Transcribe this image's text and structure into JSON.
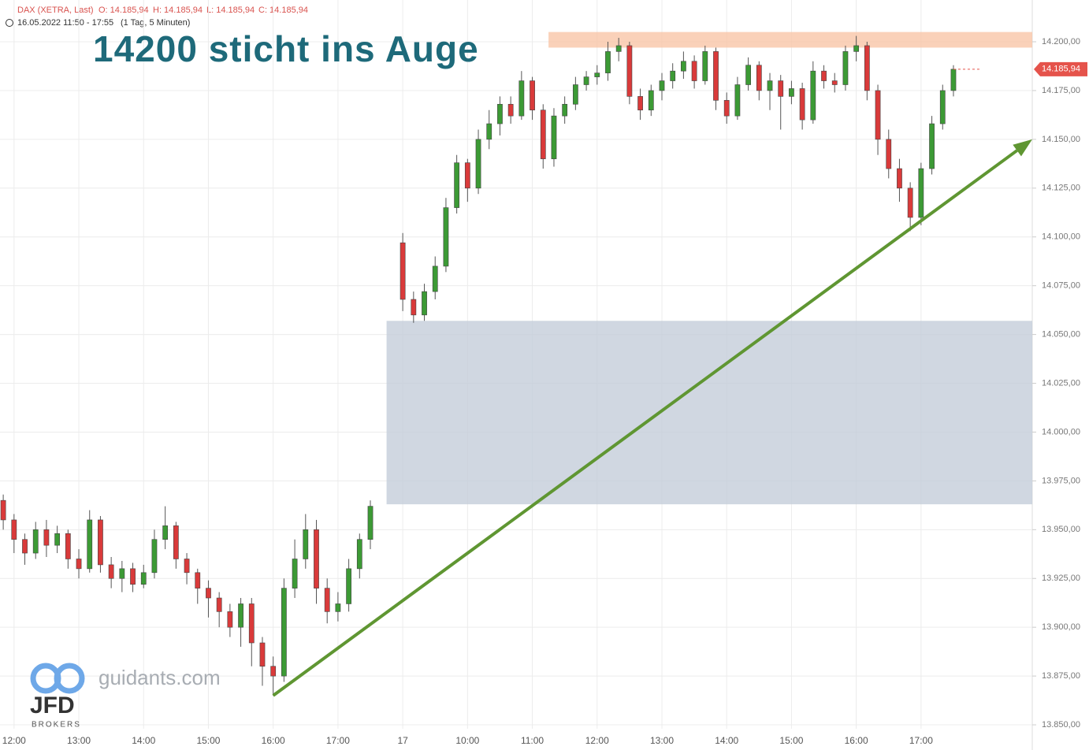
{
  "header": {
    "instrument": "DAX (XETRA, Last)",
    "open": "O: 14.185,94",
    "high": "H: 14.185,94",
    "low": "L: 14.185,94",
    "close": "C: 14.185,94",
    "range": "16.05.2022 11:50 - 17:55",
    "interval": "(1 Tag, 5 Minuten)"
  },
  "logo": {
    "site": "guidants.com",
    "brand": "JFD",
    "sub": "BROKERS"
  },
  "chart_data": {
    "type": "candlestick",
    "title": "14200 sticht ins Auge",
    "up_color": "#3c9a35",
    "down_color": "#d93a3a",
    "x": [
      0,
      1,
      2,
      3,
      4,
      5,
      6,
      7,
      8,
      9,
      10,
      11,
      12,
      13,
      14,
      15,
      16,
      17,
      18,
      19,
      20,
      21,
      22,
      23,
      24,
      25,
      26,
      27,
      28,
      29,
      30,
      31,
      32,
      33,
      34,
      37,
      38,
      39,
      40,
      41,
      42,
      43,
      44,
      45,
      46,
      47,
      48,
      49,
      50,
      51,
      52,
      53,
      54,
      55,
      56,
      57,
      58,
      59,
      60,
      61,
      62,
      63,
      64,
      65,
      66,
      67,
      68,
      69,
      70,
      71,
      72,
      73,
      74,
      75,
      76,
      77,
      78,
      79,
      80,
      81,
      82,
      83,
      84,
      85,
      86,
      87,
      88
    ],
    "open": [
      13965,
      13955,
      13945,
      13938,
      13950,
      13942,
      13948,
      13935,
      13930,
      13955,
      13932,
      13925,
      13930,
      13922,
      13928,
      13945,
      13952,
      13935,
      13928,
      13920,
      13915,
      13908,
      13900,
      13912,
      13892,
      13880,
      13875,
      13920,
      13935,
      13950,
      13920,
      13908,
      13912,
      13930,
      13945,
      14097,
      14068,
      14060,
      14072,
      14085,
      14115,
      14138,
      14125,
      14150,
      14158,
      14168,
      14162,
      14180,
      14165,
      14140,
      14162,
      14168,
      14178,
      14182,
      14184,
      14195,
      14198,
      14172,
      14165,
      14175,
      14180,
      14185,
      14190,
      14180,
      14195,
      14170,
      14162,
      14178,
      14188,
      14175,
      14180,
      14172,
      14176,
      14160,
      14185,
      14180,
      14178,
      14195,
      14198,
      14175,
      14150,
      14135,
      14125,
      14110,
      14135,
      14158,
      14175
    ],
    "high": [
      13968,
      13958,
      13948,
      13954,
      13955,
      13952,
      13950,
      13940,
      13960,
      13957,
      13936,
      13934,
      13933,
      13932,
      13950,
      13962,
      13954,
      13938,
      13930,
      13924,
      13918,
      13912,
      13915,
      13915,
      13895,
      13885,
      13925,
      13945,
      13958,
      13955,
      13925,
      13918,
      13935,
      13948,
      13965,
      14102,
      14072,
      14076,
      14090,
      14120,
      14142,
      14140,
      14155,
      14165,
      14172,
      14172,
      14185,
      14182,
      14168,
      14166,
      14172,
      14182,
      14185,
      14188,
      14200,
      14202,
      14200,
      14176,
      14178,
      14184,
      14189,
      14195,
      14193,
      14198,
      14197,
      14174,
      14182,
      14192,
      14190,
      14184,
      14183,
      14180,
      14179,
      14190,
      14188,
      14184,
      14198,
      14203,
      14200,
      14178,
      14155,
      14140,
      14128,
      14138,
      14162,
      14178,
      14188
    ],
    "low": [
      13950,
      13938,
      13932,
      13935,
      13936,
      13938,
      13930,
      13925,
      13928,
      13928,
      13920,
      13918,
      13918,
      13920,
      13925,
      13940,
      13930,
      13922,
      13912,
      13905,
      13900,
      13895,
      13890,
      13880,
      13870,
      13865,
      13872,
      13915,
      13930,
      13912,
      13902,
      13903,
      13908,
      13925,
      13940,
      14062,
      14056,
      14057,
      14068,
      14082,
      14112,
      14118,
      14122,
      14145,
      14152,
      14158,
      14160,
      14160,
      14135,
      14136,
      14158,
      14165,
      14175,
      14178,
      14180,
      14190,
      14168,
      14160,
      14162,
      14170,
      14176,
      14181,
      14176,
      14178,
      14165,
      14158,
      14160,
      14175,
      14170,
      14165,
      14155,
      14168,
      14155,
      14158,
      14176,
      14174,
      14175,
      14190,
      14170,
      14142,
      14130,
      14118,
      14103,
      14106,
      14132,
      14155,
      14172
    ],
    "close": [
      13955,
      13945,
      13938,
      13950,
      13942,
      13948,
      13935,
      13930,
      13955,
      13932,
      13925,
      13930,
      13922,
      13928,
      13945,
      13952,
      13935,
      13928,
      13920,
      13915,
      13908,
      13900,
      13912,
      13892,
      13880,
      13875,
      13920,
      13935,
      13950,
      13920,
      13908,
      13912,
      13930,
      13945,
      13962,
      14068,
      14060,
      14072,
      14085,
      14115,
      14138,
      14125,
      14150,
      14158,
      14168,
      14162,
      14180,
      14165,
      14140,
      14162,
      14168,
      14178,
      14182,
      14184,
      14195,
      14198,
      14172,
      14165,
      14175,
      14180,
      14185,
      14190,
      14180,
      14195,
      14170,
      14162,
      14178,
      14188,
      14175,
      14180,
      14172,
      14176,
      14160,
      14185,
      14180,
      14178,
      14195,
      14198,
      14175,
      14150,
      14135,
      14125,
      14110,
      14135,
      14158,
      14175,
      14185.94
    ],
    "xlim": [
      -0.3,
      95.3
    ],
    "ylim": [
      13848,
      14221.4
    ],
    "xticks": [
      {
        "value": 1,
        "label": "12:00"
      },
      {
        "value": 7,
        "label": "13:00"
      },
      {
        "value": 13,
        "label": "14:00"
      },
      {
        "value": 19,
        "label": "15:00"
      },
      {
        "value": 25,
        "label": "16:00"
      },
      {
        "value": 31,
        "label": "17:00"
      },
      {
        "value": 37,
        "label": "17"
      },
      {
        "value": 43,
        "label": "10:00"
      },
      {
        "value": 49,
        "label": "11:00"
      },
      {
        "value": 55,
        "label": "12:00"
      },
      {
        "value": 61,
        "label": "13:00"
      },
      {
        "value": 67,
        "label": "14:00"
      },
      {
        "value": 73,
        "label": "15:00"
      },
      {
        "value": 79,
        "label": "16:00"
      },
      {
        "value": 85,
        "label": "17:00"
      }
    ],
    "yticks": [
      {
        "value": 13850,
        "label": "13.850,00"
      },
      {
        "value": 13875,
        "label": "13.875,00"
      },
      {
        "value": 13900,
        "label": "13.900,00"
      },
      {
        "value": 13925,
        "label": "13.925,00"
      },
      {
        "value": 13950,
        "label": "13.950,00"
      },
      {
        "value": 13975,
        "label": "13.975,00"
      },
      {
        "value": 14000,
        "label": "14.000,00"
      },
      {
        "value": 14025,
        "label": "14.025,00"
      },
      {
        "value": 14050,
        "label": "14.050,00"
      },
      {
        "value": 14075,
        "label": "14.075,00"
      },
      {
        "value": 14100,
        "label": "14.100,00"
      },
      {
        "value": 14125,
        "label": "14.125,00"
      },
      {
        "value": 14150,
        "label": "14.150,00"
      },
      {
        "value": 14175,
        "label": "14.175,00"
      },
      {
        "value": 14200,
        "label": "14.200,00"
      }
    ],
    "grid": true,
    "last_price": {
      "value": 14185.94,
      "label": "14.185,94",
      "color": "#e5534b"
    },
    "zones": [
      {
        "x": [
          50.5,
          95.3
        ],
        "y": [
          14197,
          14205
        ],
        "color": "#f9c6a8"
      },
      {
        "x": [
          35.5,
          95.3
        ],
        "y": [
          13963,
          14057
        ],
        "color": "#c4cdda"
      }
    ],
    "trend_arrow": {
      "x": [
        25,
        95.3
      ],
      "y": [
        13865,
        14150
      ],
      "color": "#5f9632"
    }
  }
}
